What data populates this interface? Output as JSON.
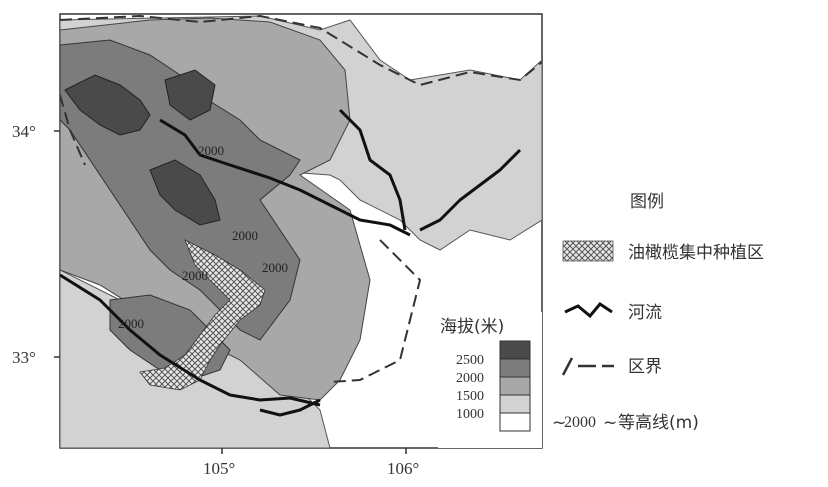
{
  "axes": {
    "lat_ticks": [
      "34°",
      "33°"
    ],
    "lon_ticks": [
      "105°",
      "106°"
    ]
  },
  "contour_labels": [
    "2000",
    "2000",
    "2000",
    "2000",
    "2000"
  ],
  "legend": {
    "title": "图例",
    "olive_zone": "油橄榄集中种植区",
    "river": "河流",
    "boundary": "区界",
    "contour": "等高线(m)",
    "contour_sample": "2000"
  },
  "elevation_legend": {
    "title": "海拔(米)",
    "levels": [
      "2500",
      "2000",
      "1500",
      "1000"
    ],
    "colors": [
      "#4a4a4a",
      "#7c7c7c",
      "#a8a8a8",
      "#d2d2d2",
      "#ffffff"
    ]
  }
}
